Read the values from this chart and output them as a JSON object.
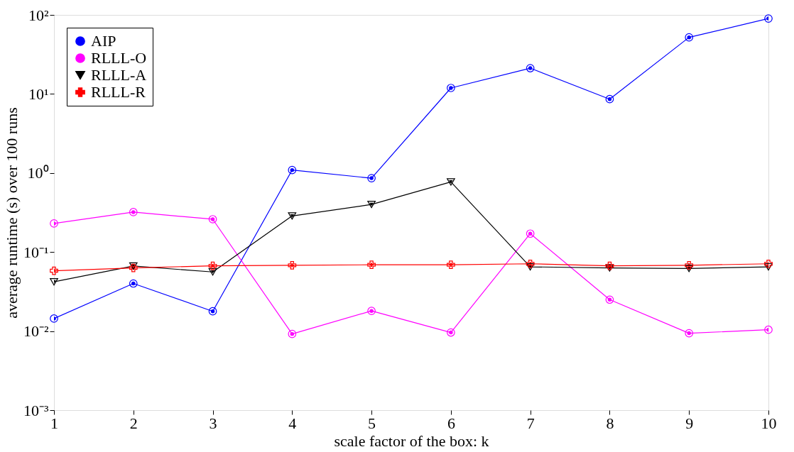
{
  "chart_data": {
    "type": "line",
    "xlabel": "scale factor of the box: k",
    "ylabel": "average runtime (s) over 100 runs",
    "x": [
      1,
      2,
      3,
      4,
      5,
      6,
      7,
      8,
      9,
      10
    ],
    "series": [
      {
        "name": "AIP",
        "color": "#0000ff",
        "marker": "circle",
        "values": [
          0.0144,
          0.04,
          0.0178,
          1.09,
          0.86,
          11.9,
          21.2,
          8.6,
          52,
          90
        ]
      },
      {
        "name": "RLLL-O",
        "color": "#ff00ff",
        "marker": "circle",
        "values": [
          0.23,
          0.32,
          0.26,
          0.0092,
          0.018,
          0.0096,
          0.171,
          0.025,
          0.0094,
          0.0104
        ]
      },
      {
        "name": "RLLL-A",
        "color": "#000000",
        "marker": "triangle",
        "values": [
          0.042,
          0.0666,
          0.056,
          0.286,
          0.4,
          0.77,
          0.065,
          0.063,
          0.062,
          0.065
        ]
      },
      {
        "name": "RLLL-R",
        "color": "#ff0000",
        "marker": "cross",
        "values": [
          0.058,
          0.063,
          0.067,
          0.068,
          0.069,
          0.069,
          0.071,
          0.067,
          0.068,
          0.071
        ]
      }
    ],
    "xlim": [
      1,
      10
    ],
    "xticks": [
      1,
      2,
      3,
      4,
      5,
      6,
      7,
      8,
      9,
      10
    ],
    "ylim": [
      0.001,
      100
    ],
    "yticks": [
      {
        "value": 0.001,
        "label": "10⁻³"
      },
      {
        "value": 0.01,
        "label": "10⁻²"
      },
      {
        "value": 0.1,
        "label": "10⁻¹"
      },
      {
        "value": 1,
        "label": "10⁰"
      },
      {
        "value": 10,
        "label": "10¹"
      },
      {
        "value": 100,
        "label": "10²"
      }
    ],
    "log": "y",
    "grid": false,
    "legend": "top left",
    "line_style": "solid"
  }
}
